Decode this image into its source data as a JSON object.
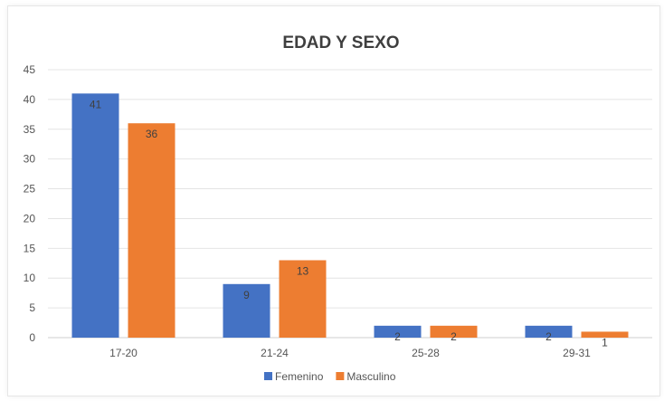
{
  "chart_data": {
    "type": "bar",
    "title": "EDAD Y SEXO",
    "xlabel": "",
    "ylabel": "",
    "categories": [
      "17-20",
      "21-24",
      "25-28",
      "29-31"
    ],
    "series": [
      {
        "name": "Femenino",
        "color": "#4472c4",
        "values": [
          41,
          9,
          2,
          2
        ]
      },
      {
        "name": "Masculino",
        "color": "#ed7d31",
        "values": [
          36,
          13,
          2,
          1
        ]
      }
    ],
    "ylim": [
      0,
      45
    ],
    "yticks": [
      0,
      5,
      10,
      15,
      20,
      25,
      30,
      35,
      40,
      45
    ],
    "grid": true,
    "legend": "bottom"
  }
}
